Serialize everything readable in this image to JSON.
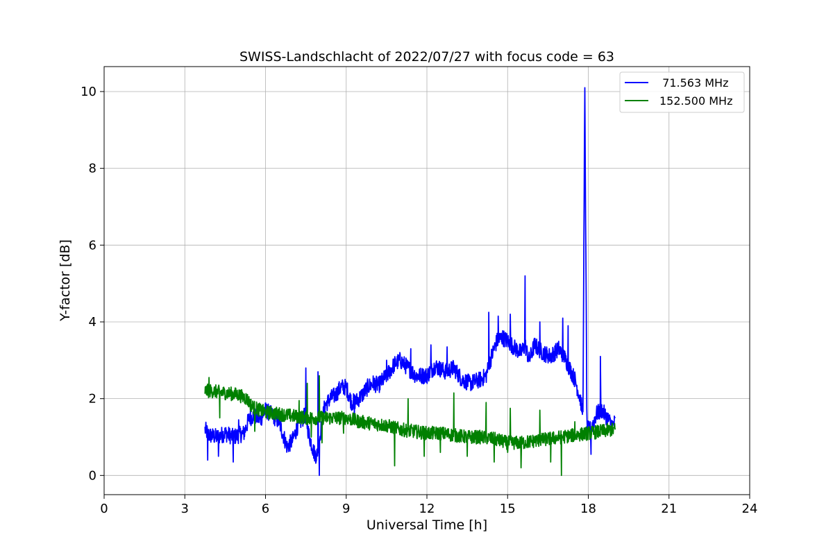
{
  "chart_data": {
    "type": "line",
    "title": "SWISS-Landschlacht of 2022/07/27 with focus code = 63",
    "xlabel": "Universal Time [h]",
    "ylabel": "Y-factor [dB]",
    "xlim": [
      0,
      24
    ],
    "ylim": [
      -0.5,
      10.65
    ],
    "xticks": [
      0,
      3,
      6,
      9,
      12,
      15,
      18,
      21,
      24
    ],
    "yticks": [
      0,
      2,
      4,
      6,
      8,
      10
    ],
    "grid": true,
    "legend_position": "top-right",
    "series": [
      {
        "name": "  71.563 MHz",
        "color": "#0000ff",
        "x": [
          3.75,
          3.9,
          4.2,
          4.5,
          4.8,
          5.0,
          5.2,
          5.4,
          5.6,
          5.8,
          6.0,
          6.2,
          6.5,
          6.8,
          7.0,
          7.2,
          7.4,
          7.5,
          7.6,
          7.8,
          7.9,
          8.0,
          8.1,
          8.2,
          8.4,
          8.6,
          8.8,
          9.0,
          9.2,
          9.4,
          9.6,
          9.8,
          10.0,
          10.2,
          10.5,
          10.8,
          11.0,
          11.3,
          11.6,
          12.0,
          12.3,
          12.7,
          13.0,
          13.3,
          13.6,
          14.0,
          14.2,
          14.4,
          14.6,
          14.8,
          15.0,
          15.3,
          15.5,
          15.65,
          15.8,
          16.0,
          16.3,
          16.6,
          16.9,
          17.1,
          17.3,
          17.5,
          17.7,
          17.8,
          17.87,
          17.95,
          18.1,
          18.3,
          18.5,
          18.7,
          18.9,
          19.0
        ],
        "y": [
          1.2,
          1.05,
          1.0,
          1.1,
          1.0,
          1.05,
          1.1,
          1.5,
          1.55,
          1.45,
          1.7,
          1.6,
          1.4,
          0.75,
          0.9,
          1.3,
          1.5,
          1.6,
          1.1,
          0.6,
          0.5,
          0.9,
          1.4,
          1.8,
          2.0,
          2.1,
          2.3,
          2.3,
          1.9,
          1.95,
          2.1,
          2.3,
          2.4,
          2.35,
          2.6,
          2.9,
          3.0,
          2.8,
          2.6,
          2.6,
          2.85,
          2.7,
          2.8,
          2.5,
          2.4,
          2.5,
          2.6,
          3.1,
          3.5,
          3.6,
          3.5,
          3.3,
          3.2,
          3.4,
          3.0,
          3.4,
          3.2,
          3.1,
          3.3,
          3.1,
          2.8,
          2.5,
          2.0,
          1.6,
          10.1,
          1.2,
          1.2,
          1.6,
          1.7,
          1.5,
          1.3,
          1.4
        ],
        "spikes": [
          {
            "x": 3.85,
            "y": 0.4
          },
          {
            "x": 4.25,
            "y": 0.5
          },
          {
            "x": 4.8,
            "y": 0.35
          },
          {
            "x": 5.0,
            "y": 1.45
          },
          {
            "x": 7.5,
            "y": 2.8
          },
          {
            "x": 7.95,
            "y": 2.7
          },
          {
            "x": 8.0,
            "y": 0.0
          },
          {
            "x": 9.3,
            "y": 1.4
          },
          {
            "x": 10.5,
            "y": 3.0
          },
          {
            "x": 11.4,
            "y": 3.3
          },
          {
            "x": 12.15,
            "y": 3.4
          },
          {
            "x": 12.75,
            "y": 3.35
          },
          {
            "x": 14.3,
            "y": 4.25
          },
          {
            "x": 14.65,
            "y": 4.15
          },
          {
            "x": 15.1,
            "y": 4.2
          },
          {
            "x": 15.65,
            "y": 5.2
          },
          {
            "x": 16.2,
            "y": 4.0
          },
          {
            "x": 17.05,
            "y": 4.1
          },
          {
            "x": 17.25,
            "y": 3.9
          },
          {
            "x": 18.45,
            "y": 3.1
          },
          {
            "x": 18.1,
            "y": 0.55
          }
        ]
      },
      {
        "name": "152.500 MHz",
        "color": "#008000",
        "x": [
          3.75,
          4.0,
          4.5,
          5.0,
          5.3,
          5.5,
          5.8,
          6.0,
          6.5,
          7.0,
          7.5,
          8.0,
          8.5,
          9.0,
          9.5,
          10.0,
          10.5,
          11.0,
          11.5,
          12.0,
          12.5,
          13.0,
          13.5,
          14.0,
          14.5,
          15.0,
          15.5,
          16.0,
          16.5,
          17.0,
          17.5,
          18.0,
          18.5,
          19.0
        ],
        "y": [
          2.2,
          2.2,
          2.15,
          2.1,
          2.0,
          1.8,
          1.7,
          1.65,
          1.6,
          1.55,
          1.5,
          1.5,
          1.5,
          1.5,
          1.4,
          1.35,
          1.3,
          1.2,
          1.15,
          1.1,
          1.1,
          1.05,
          1.0,
          1.0,
          0.95,
          0.85,
          0.85,
          0.9,
          0.95,
          1.0,
          1.05,
          1.1,
          1.15,
          1.2
        ],
        "spikes": [
          {
            "x": 3.9,
            "y": 2.55
          },
          {
            "x": 4.3,
            "y": 1.5
          },
          {
            "x": 5.6,
            "y": 1.15
          },
          {
            "x": 7.25,
            "y": 1.95
          },
          {
            "x": 7.55,
            "y": 2.4
          },
          {
            "x": 7.7,
            "y": 1.0
          },
          {
            "x": 8.0,
            "y": 2.6
          },
          {
            "x": 8.1,
            "y": 0.85
          },
          {
            "x": 8.9,
            "y": 1.1
          },
          {
            "x": 10.8,
            "y": 0.25
          },
          {
            "x": 11.3,
            "y": 2.0
          },
          {
            "x": 11.9,
            "y": 0.5
          },
          {
            "x": 12.5,
            "y": 0.6
          },
          {
            "x": 13.0,
            "y": 2.15
          },
          {
            "x": 13.5,
            "y": 0.5
          },
          {
            "x": 14.2,
            "y": 1.9
          },
          {
            "x": 14.5,
            "y": 0.35
          },
          {
            "x": 15.0,
            "y": 0.6
          },
          {
            "x": 15.1,
            "y": 1.75
          },
          {
            "x": 15.5,
            "y": 0.2
          },
          {
            "x": 16.2,
            "y": 1.7
          },
          {
            "x": 16.6,
            "y": 0.35
          },
          {
            "x": 17.0,
            "y": 0.0
          },
          {
            "x": 17.5,
            "y": 1.4
          }
        ]
      }
    ]
  }
}
